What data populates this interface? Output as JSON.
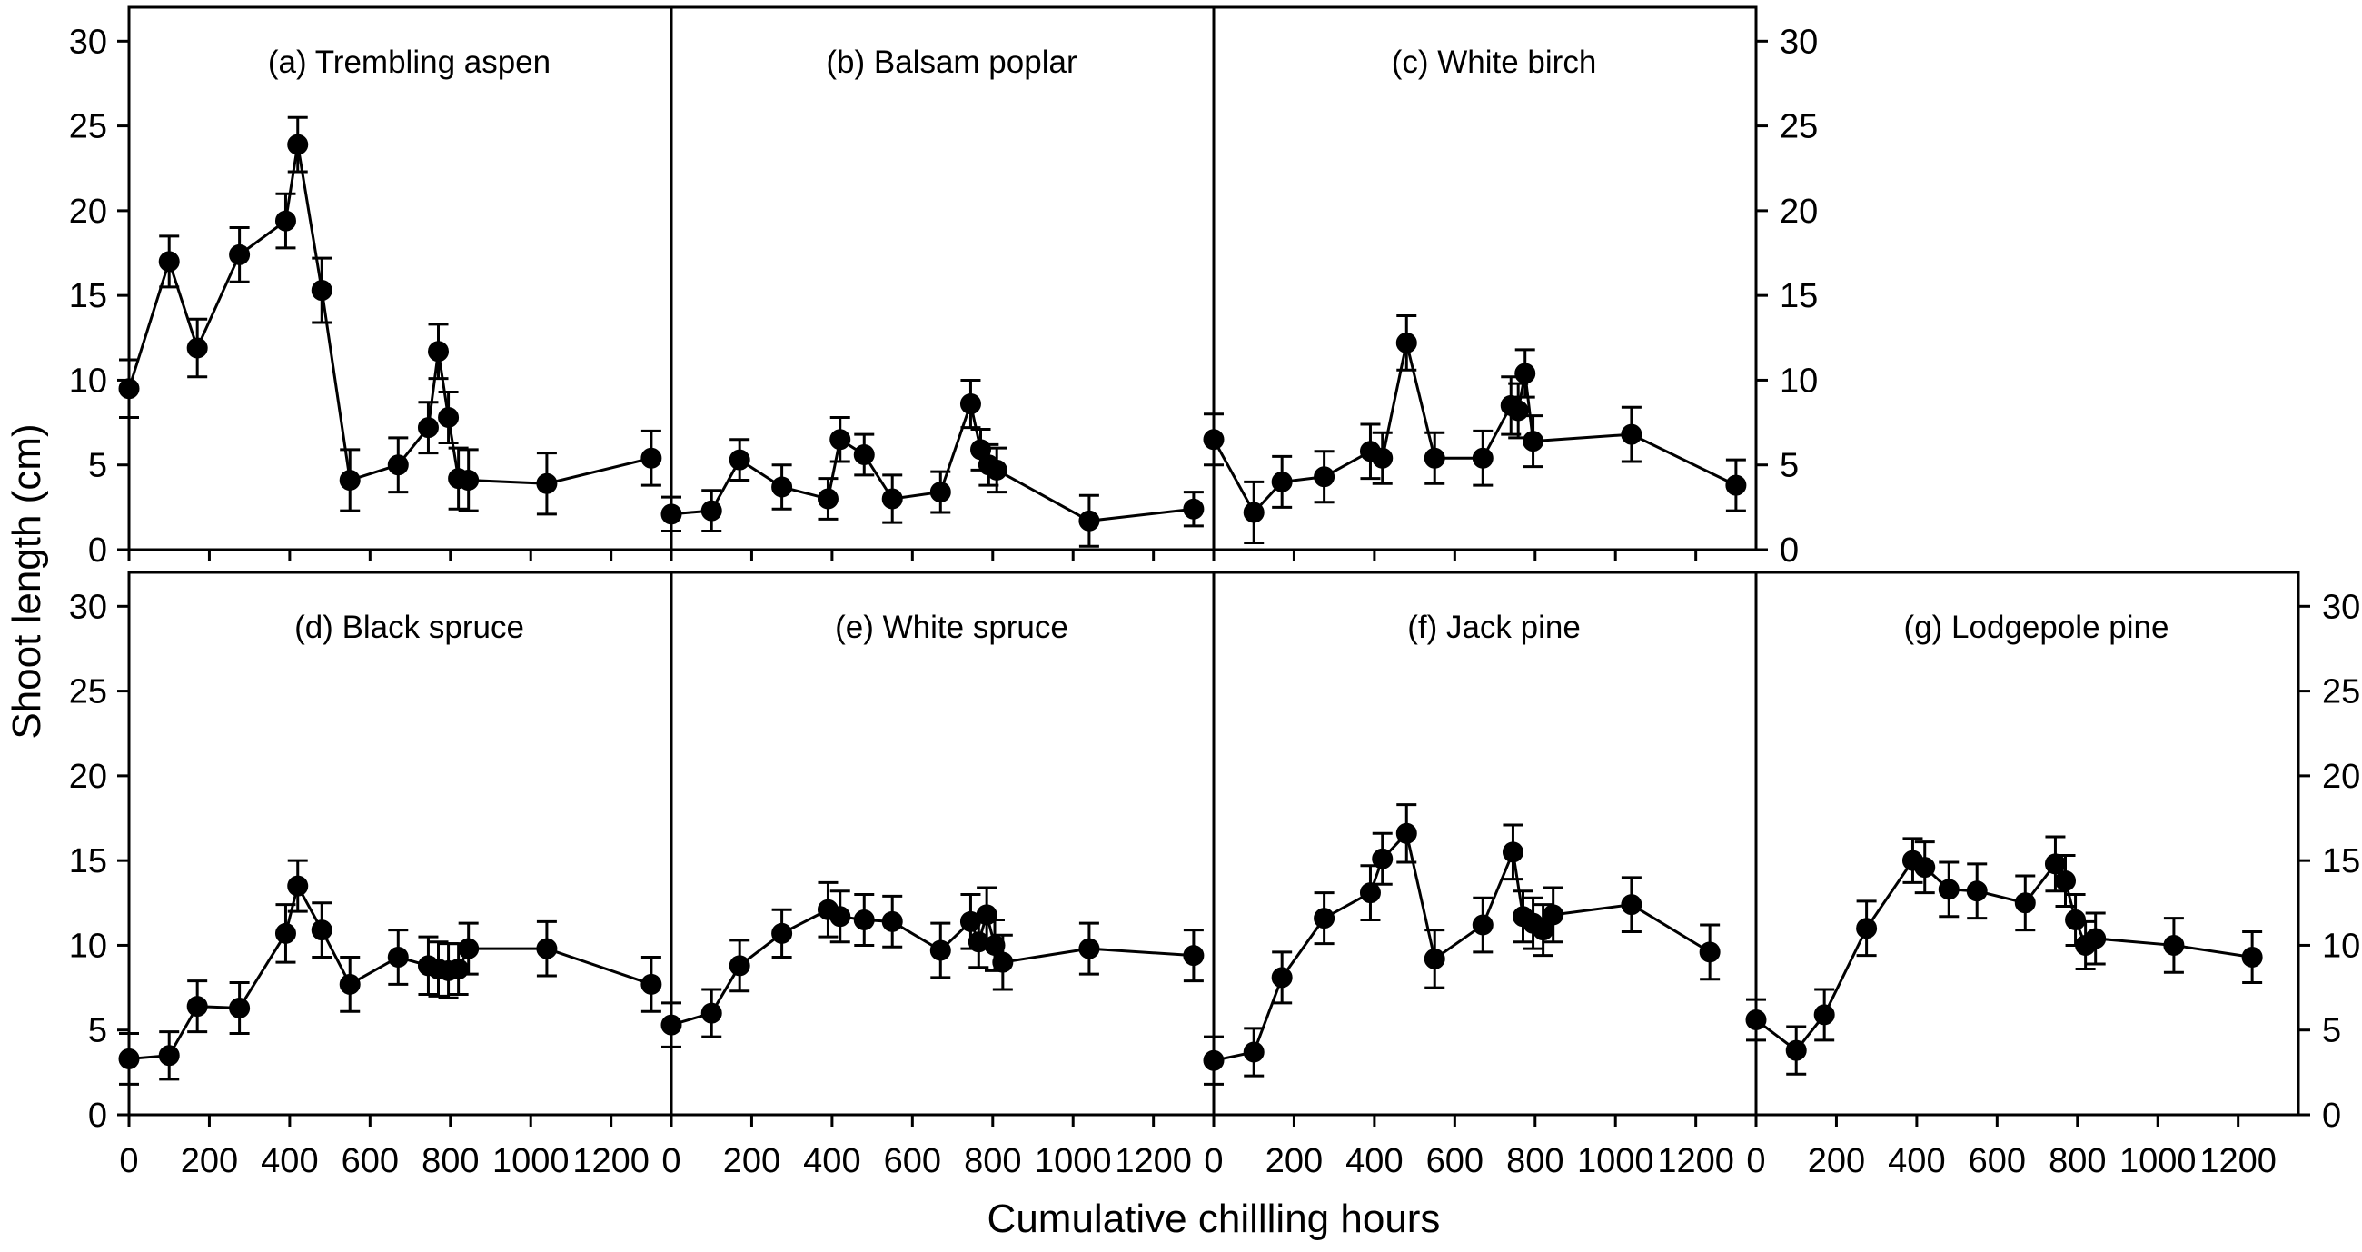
{
  "figure": {
    "ylabel": "Shoot length (cm)",
    "xlabel": "Cumulative chillling hours",
    "background_color": "#ffffff",
    "ink_color": "#000000"
  },
  "axes": {
    "x_range": [
      0,
      1350
    ],
    "y_range": [
      0,
      32
    ],
    "x_ticks": [
      0,
      200,
      400,
      600,
      800,
      1000,
      1200
    ],
    "y_ticks": [
      0,
      5,
      10,
      15,
      20,
      25,
      30
    ],
    "grid": false,
    "marker": "filled-circle",
    "error_bars": true,
    "mirror_y_labels_right": true,
    "x_labels_bottom_row_only": true
  },
  "chart_data": [
    {
      "type": "line",
      "panel": "a",
      "title": "(a) Trembling aspen",
      "row": 0,
      "col": 0,
      "x": [
        0,
        100,
        170,
        275,
        390,
        420,
        480,
        550,
        670,
        745,
        770,
        795,
        820,
        845,
        1040,
        1300
      ],
      "y": [
        9.5,
        17.0,
        11.9,
        17.4,
        19.4,
        23.9,
        15.3,
        4.1,
        5.0,
        7.2,
        11.7,
        7.8,
        4.2,
        4.1,
        3.9,
        5.4
      ],
      "err": [
        1.7,
        1.5,
        1.7,
        1.6,
        1.6,
        1.6,
        1.9,
        1.8,
        1.6,
        1.5,
        1.6,
        1.5,
        1.8,
        1.8,
        1.8,
        1.6
      ]
    },
    {
      "type": "line",
      "panel": "b",
      "title": "(b) Balsam poplar",
      "row": 0,
      "col": 1,
      "x": [
        0,
        100,
        170,
        275,
        390,
        420,
        480,
        550,
        670,
        745,
        770,
        790,
        810,
        1040,
        1300
      ],
      "y": [
        2.1,
        2.3,
        5.3,
        3.7,
        3.0,
        6.5,
        5.6,
        3.0,
        3.4,
        8.6,
        5.9,
        5.0,
        4.7,
        1.7,
        2.4
      ],
      "err": [
        1.0,
        1.2,
        1.2,
        1.3,
        1.2,
        1.3,
        1.2,
        1.4,
        1.2,
        1.4,
        1.2,
        1.2,
        1.3,
        1.5,
        1.0
      ]
    },
    {
      "type": "line",
      "panel": "c",
      "title": "(c) White birch",
      "row": 0,
      "col": 2,
      "x": [
        0,
        100,
        170,
        275,
        390,
        420,
        480,
        550,
        670,
        740,
        758,
        775,
        795,
        1040,
        1300
      ],
      "y": [
        6.5,
        2.2,
        4.0,
        4.3,
        5.8,
        5.4,
        12.2,
        5.4,
        5.4,
        8.5,
        8.2,
        10.4,
        6.4,
        6.8,
        3.8
      ],
      "err": [
        1.5,
        1.8,
        1.5,
        1.5,
        1.6,
        1.5,
        1.6,
        1.5,
        1.6,
        1.7,
        1.6,
        1.4,
        1.5,
        1.6,
        1.5
      ]
    },
    {
      "type": "line",
      "panel": "d",
      "title": "(d) Black spruce",
      "row": 1,
      "col": 0,
      "x": [
        0,
        100,
        170,
        275,
        390,
        420,
        480,
        550,
        670,
        745,
        770,
        795,
        820,
        845,
        1040,
        1300
      ],
      "y": [
        3.3,
        3.5,
        6.4,
        6.3,
        10.7,
        13.5,
        10.9,
        7.7,
        9.3,
        8.8,
        8.6,
        8.5,
        8.6,
        9.8,
        9.8,
        7.7
      ],
      "err": [
        1.5,
        1.4,
        1.5,
        1.5,
        1.7,
        1.5,
        1.6,
        1.6,
        1.6,
        1.7,
        1.6,
        1.6,
        1.5,
        1.5,
        1.6,
        1.6
      ]
    },
    {
      "type": "line",
      "panel": "e",
      "title": "(e) White spruce",
      "row": 1,
      "col": 1,
      "x": [
        0,
        100,
        170,
        275,
        390,
        420,
        480,
        550,
        670,
        745,
        765,
        785,
        805,
        825,
        1040,
        1300
      ],
      "y": [
        5.3,
        6.0,
        8.8,
        10.7,
        12.1,
        11.7,
        11.5,
        11.4,
        9.7,
        11.4,
        10.2,
        11.8,
        10.0,
        9.0,
        9.8,
        9.4
      ],
      "err": [
        1.3,
        1.4,
        1.5,
        1.4,
        1.6,
        1.5,
        1.5,
        1.5,
        1.6,
        1.6,
        1.5,
        1.6,
        1.5,
        1.6,
        1.5,
        1.5
      ]
    },
    {
      "type": "line",
      "panel": "f",
      "title": "(f) Jack pine",
      "row": 1,
      "col": 2,
      "x": [
        0,
        100,
        170,
        275,
        390,
        420,
        480,
        550,
        670,
        745,
        770,
        795,
        820,
        845,
        1040,
        1235
      ],
      "y": [
        3.2,
        3.7,
        8.1,
        11.6,
        13.1,
        15.1,
        16.6,
        9.2,
        11.2,
        15.5,
        11.7,
        11.3,
        10.9,
        11.8,
        12.4,
        9.6
      ],
      "err": [
        1.4,
        1.4,
        1.5,
        1.5,
        1.6,
        1.5,
        1.7,
        1.7,
        1.6,
        1.6,
        1.5,
        1.5,
        1.5,
        1.6,
        1.6,
        1.6
      ]
    },
    {
      "type": "line",
      "panel": "g",
      "title": "(g) Lodgepole pine",
      "row": 1,
      "col": 3,
      "x": [
        0,
        100,
        170,
        275,
        390,
        420,
        480,
        550,
        670,
        745,
        770,
        795,
        820,
        845,
        1040,
        1235
      ],
      "y": [
        5.6,
        3.8,
        5.9,
        11.0,
        15.0,
        14.6,
        13.3,
        13.2,
        12.5,
        14.8,
        13.8,
        11.5,
        10.0,
        10.4,
        10.0,
        9.3
      ],
      "err": [
        1.2,
        1.4,
        1.5,
        1.6,
        1.3,
        1.5,
        1.6,
        1.6,
        1.6,
        1.6,
        1.5,
        1.5,
        1.4,
        1.5,
        1.6,
        1.5
      ]
    }
  ]
}
